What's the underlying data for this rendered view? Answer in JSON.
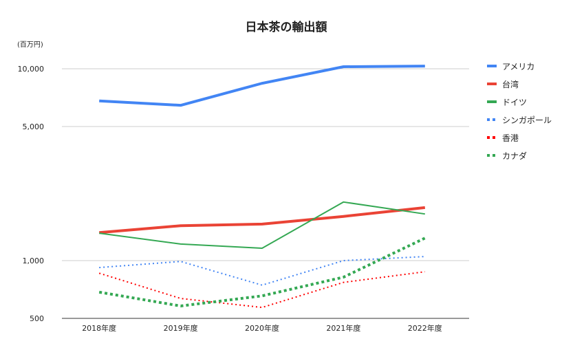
{
  "chart_data": {
    "type": "line",
    "title": "日本茶の輸出額",
    "ylabel": "(百万円)",
    "xlabel": "",
    "yscale": "log",
    "ylim": [
      500,
      10500
    ],
    "yticks": [
      500,
      1000,
      5000,
      10000
    ],
    "ytick_labels": [
      "500",
      "1,000",
      "5,000",
      "10,000"
    ],
    "categories": [
      "2018年度",
      "2019年度",
      "2020年度",
      "2021年度",
      "2022年度"
    ],
    "grid": true,
    "legend_position": "right",
    "series": [
      {
        "name": "アメリカ",
        "color": "#4285f4",
        "style": "solid-thick",
        "values": [
          6800,
          6450,
          8400,
          10250,
          10330
        ]
      },
      {
        "name": "台湾",
        "color": "#ea4335",
        "style": "solid-thick",
        "values": [
          1400,
          1520,
          1550,
          1700,
          1890
        ]
      },
      {
        "name": "ドイツ",
        "color": "#34a853",
        "style": "solid-thin",
        "values": [
          1390,
          1220,
          1160,
          2020,
          1750
        ]
      },
      {
        "name": "シンガポール",
        "color": "#4285f4",
        "style": "dotted-thin",
        "values": [
          920,
          990,
          745,
          1000,
          1050
        ]
      },
      {
        "name": "香港",
        "color": "#ff0000",
        "style": "dotted-thin",
        "values": [
          860,
          635,
          570,
          770,
          875
        ]
      },
      {
        "name": "カナダ",
        "color": "#34a853",
        "style": "dotted-thick",
        "values": [
          685,
          580,
          655,
          820,
          1310
        ]
      }
    ]
  }
}
